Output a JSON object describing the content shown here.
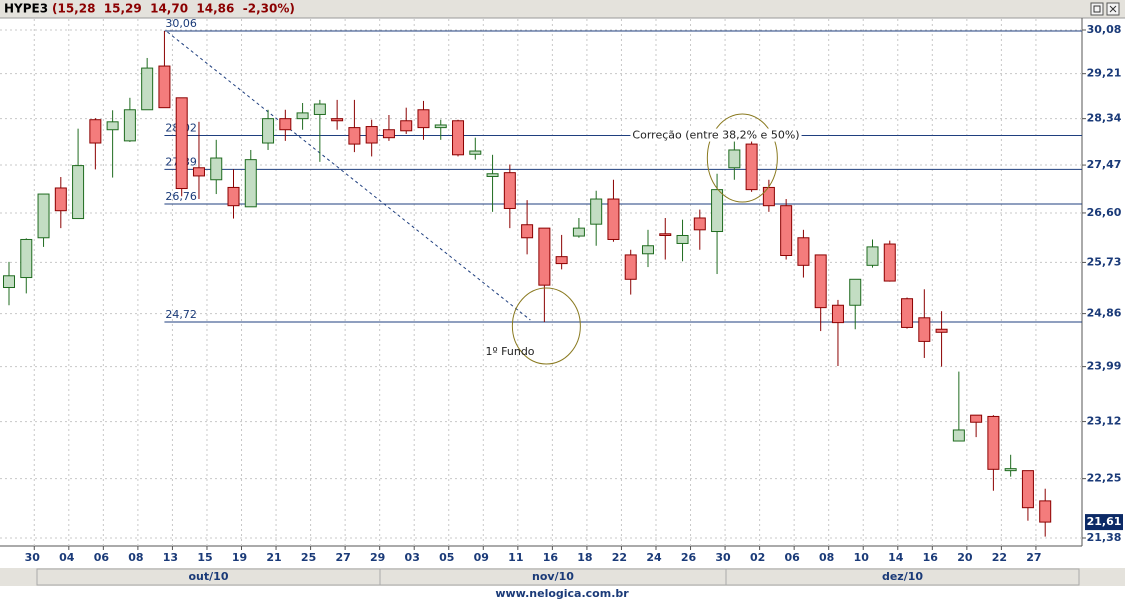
{
  "window": {
    "symbol": "HYPE3",
    "quote": "(15,28  15,29  14,70  14,86  -2,30%)"
  },
  "chart_data": {
    "type": "candlestick",
    "categories": [
      null,
      "30",
      null,
      "04",
      null,
      "06",
      null,
      "08",
      null,
      "13",
      null,
      "15",
      null,
      "19",
      null,
      "21",
      null,
      "25",
      null,
      "27",
      null,
      "29",
      null,
      "03",
      null,
      "05",
      null,
      "09",
      null,
      "11",
      null,
      "16",
      null,
      "18",
      null,
      "22",
      null,
      "24",
      null,
      "26",
      null,
      "30",
      null,
      "02",
      null,
      "06",
      null,
      "08",
      null,
      "10",
      null,
      "14",
      null,
      "16",
      null,
      "20",
      null,
      "22",
      null,
      "27",
      null
    ],
    "open": [
      25.3,
      25.47,
      26.16,
      27.05,
      26.5,
      28.32,
      28.13,
      27.92,
      28.51,
      29.36,
      28.74,
      27.42,
      27.2,
      27.06,
      26.71,
      27.88,
      28.34,
      28.34,
      28.42,
      28.34,
      28.17,
      28.19,
      28.13,
      28.3,
      28.51,
      28.17,
      28.3,
      27.67,
      27.26,
      27.33,
      26.39,
      26.33,
      25.83,
      26.19,
      26.4,
      26.85,
      25.86,
      25.88,
      26.23,
      26.06,
      26.51,
      26.27,
      27.42,
      27.86,
      27.06,
      26.73,
      26.16,
      25.86,
      25.0,
      25.0,
      25.68,
      26.05,
      25.11,
      24.79,
      24.6,
      22.82,
      23.22,
      23.2,
      22.37,
      22.37,
      21.92
    ],
    "high": [
      25.74,
      26.15,
      26.94,
      27.25,
      28.15,
      28.35,
      28.5,
      28.74,
      29.52,
      30.06,
      28.74,
      28.28,
      27.94,
      27.39,
      27.75,
      28.51,
      28.51,
      28.64,
      28.7,
      28.7,
      28.7,
      28.32,
      28.41,
      28.55,
      28.68,
      28.32,
      28.32,
      27.98,
      27.66,
      27.48,
      26.83,
      26.33,
      26.21,
      26.51,
      27.0,
      27.2,
      25.95,
      26.3,
      26.51,
      26.48,
      26.66,
      27.31,
      27.94,
      27.94,
      27.2,
      26.85,
      26.3,
      25.86,
      25.09,
      25.44,
      26.13,
      26.11,
      25.13,
      25.27,
      24.9,
      23.91,
      23.22,
      23.22,
      22.61,
      22.37,
      22.1
    ],
    "low": [
      25.0,
      25.2,
      26.0,
      26.33,
      26.5,
      27.39,
      27.24,
      27.9,
      28.51,
      28.55,
      26.9,
      26.85,
      26.94,
      26.5,
      26.71,
      27.75,
      27.92,
      28.13,
      27.53,
      28.13,
      27.71,
      27.63,
      27.92,
      28.05,
      27.94,
      27.94,
      27.63,
      27.57,
      26.62,
      26.33,
      25.87,
      24.72,
      25.61,
      26.16,
      26.02,
      26.09,
      25.18,
      25.65,
      25.78,
      25.75,
      25.95,
      25.53,
      27.2,
      26.98,
      26.62,
      25.78,
      25.47,
      24.57,
      24.0,
      24.6,
      25.64,
      25.4,
      24.61,
      24.13,
      23.99,
      22.82,
      22.88,
      22.07,
      22.28,
      21.63,
      21.4
    ],
    "close": [
      25.5,
      26.13,
      26.94,
      26.64,
      27.46,
      27.88,
      28.28,
      28.51,
      29.32,
      28.55,
      27.04,
      27.27,
      27.6,
      26.73,
      27.57,
      28.34,
      28.13,
      28.45,
      28.62,
      28.3,
      27.86,
      27.88,
      27.98,
      28.11,
      28.17,
      28.22,
      27.66,
      27.73,
      27.31,
      26.68,
      26.16,
      25.34,
      25.71,
      26.33,
      26.85,
      26.13,
      25.44,
      26.02,
      26.2,
      26.2,
      26.3,
      27.02,
      27.75,
      27.02,
      26.73,
      25.85,
      25.68,
      24.96,
      24.71,
      25.44,
      26.0,
      25.41,
      24.63,
      24.4,
      24.55,
      22.99,
      23.11,
      22.39,
      22.4,
      21.82,
      21.61
    ],
    "up_color": "#c3ddc3",
    "up_line": "#1f6b1f",
    "down_color": "#f47c7c",
    "down_line": "#8b0000",
    "ylim": [
      21.38,
      30.08
    ],
    "log_scale": true,
    "grid": true,
    "yticks": [
      {
        "value": 30.08,
        "label": "30,08"
      },
      {
        "value": 29.21,
        "label": "29,21"
      },
      {
        "value": 28.34,
        "label": "28,34"
      },
      {
        "value": 27.47,
        "label": "27,47"
      },
      {
        "value": 26.6,
        "label": "26,60"
      },
      {
        "value": 25.73,
        "label": "25,73"
      },
      {
        "value": 24.86,
        "label": "24,86"
      },
      {
        "value": 23.99,
        "label": "23,99"
      },
      {
        "value": 23.12,
        "label": "23,12"
      },
      {
        "value": 22.25,
        "label": "22,25"
      },
      {
        "value": 21.38,
        "label": "21,38"
      }
    ],
    "levels": [
      {
        "value": 30.06,
        "label": "30,06"
      },
      {
        "value": 28.02,
        "label": "28,02"
      },
      {
        "value": 27.39,
        "label": "27,39"
      },
      {
        "value": 26.76,
        "label": "26,76"
      },
      {
        "value": 24.72,
        "label": "24,72"
      }
    ],
    "annotations": [
      "Correção (entre 38,2% e 50%)",
      "1º Fundo"
    ],
    "last_price": {
      "value": 21.61,
      "label": "21,61"
    },
    "months": [
      "out/10",
      "nov/10",
      "dez/10"
    ]
  },
  "footer": "www.nelogica.com.br"
}
